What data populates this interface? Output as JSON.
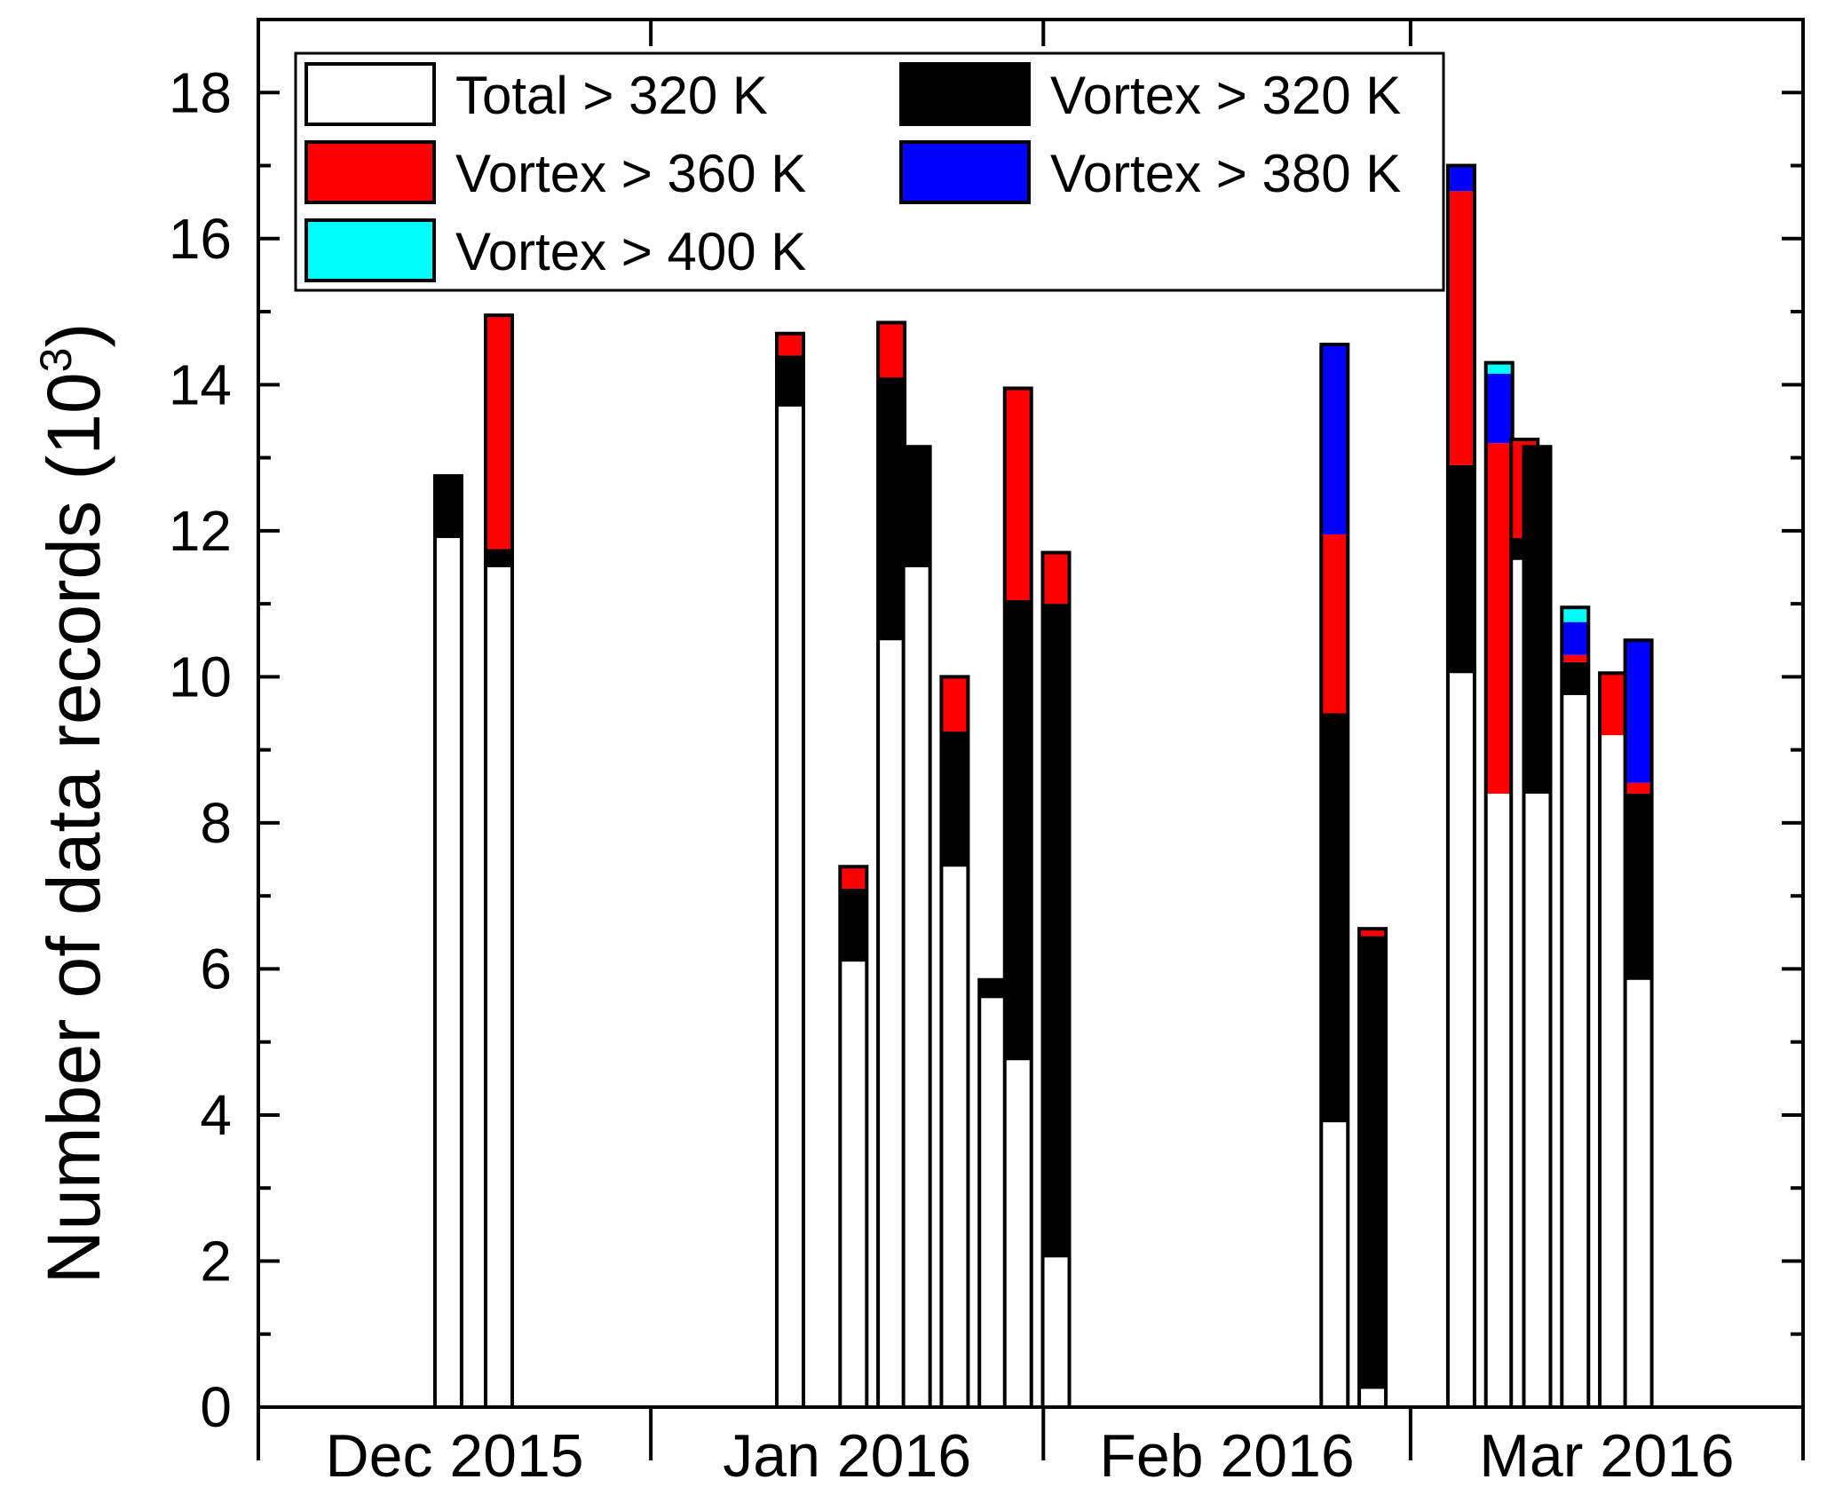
{
  "chart_data": {
    "type": "bar",
    "stacked": true,
    "ylabel": "Number of data records (10",
    "ylabel_sup": "3",
    "ylabel_close": ")",
    "ylim": [
      0,
      19
    ],
    "yticks": [
      "0",
      "2",
      "4",
      "6",
      "8",
      "10",
      "12",
      "14",
      "16",
      "18"
    ],
    "ytick_values": [
      0,
      2,
      4,
      6,
      8,
      10,
      12,
      14,
      16,
      18
    ],
    "months": [
      "Dec 2015",
      "Jan 2016",
      "Feb 2016",
      "Mar 2016"
    ],
    "xlim": [
      "2015-12-01",
      "2016-04-01"
    ],
    "month_boundaries": [
      "2016-01-01",
      "2016-02-01",
      "2016-03-01"
    ],
    "legend": {
      "placement": "top-left",
      "entries": [
        {
          "label": "Total > 320 K",
          "color": "#ffffff"
        },
        {
          "label": "Vortex > 320 K",
          "color": "#000000"
        },
        {
          "label": "Vortex > 360 K",
          "color": "#ff0000"
        },
        {
          "label": "Vortex > 380 K",
          "color": "#0000ff"
        },
        {
          "label": "Vortex > 400 K",
          "color": "#00ffff"
        }
      ]
    },
    "series": [
      {
        "name": "Total > 320 K",
        "color": "#ffffff"
      },
      {
        "name": "Vortex > 320 K",
        "color": "#000000"
      },
      {
        "name": "Vortex > 360 K",
        "color": "#ff0000"
      },
      {
        "name": "Vortex > 380 K",
        "color": "#0000ff"
      },
      {
        "name": "Vortex > 400 K",
        "color": "#00ffff"
      }
    ],
    "bars": [
      {
        "date": "2015-12-16",
        "segments": [
          11.9,
          12.75,
          12.75,
          12.75,
          12.75
        ]
      },
      {
        "date": "2015-12-20",
        "segments": [
          11.5,
          11.75,
          14.95,
          14.95,
          14.95
        ]
      },
      {
        "date": "2016-01-12",
        "segments": [
          13.7,
          14.4,
          14.7,
          14.7,
          14.7
        ]
      },
      {
        "date": "2016-01-17",
        "segments": [
          6.1,
          7.1,
          7.4,
          7.4,
          7.4
        ]
      },
      {
        "date": "2016-01-20",
        "segments": [
          10.5,
          14.1,
          14.85,
          14.85,
          14.85
        ]
      },
      {
        "date": "2016-01-22",
        "segments": [
          11.5,
          13.15,
          13.15,
          13.15,
          13.15
        ]
      },
      {
        "date": "2016-01-25",
        "segments": [
          7.4,
          9.25,
          10.0,
          10.0,
          10.0
        ]
      },
      {
        "date": "2016-01-28",
        "segments": [
          5.6,
          5.85,
          5.85,
          5.85,
          5.85
        ]
      },
      {
        "date": "2016-01-30",
        "segments": [
          4.75,
          11.05,
          13.95,
          13.95,
          13.95
        ]
      },
      {
        "date": "2016-02-02",
        "segments": [
          2.05,
          11.0,
          11.7,
          11.7,
          11.7
        ]
      },
      {
        "date": "2016-02-24",
        "segments": [
          3.9,
          9.5,
          11.95,
          14.55,
          14.55
        ]
      },
      {
        "date": "2016-02-27",
        "segments": [
          0.25,
          6.45,
          6.55,
          6.55,
          6.55
        ]
      },
      {
        "date": "2016-03-05",
        "segments": [
          10.05,
          12.9,
          16.65,
          17.0,
          17.0
        ]
      },
      {
        "date": "2016-03-08",
        "segments": [
          8.4,
          8.4,
          13.2,
          14.15,
          14.3
        ]
      },
      {
        "date": "2016-03-10",
        "segments": [
          11.6,
          11.9,
          13.25,
          13.25,
          13.25
        ]
      },
      {
        "date": "2016-03-11",
        "segments": [
          8.4,
          13.15,
          13.15,
          13.15,
          13.15
        ]
      },
      {
        "date": "2016-03-14",
        "segments": [
          9.75,
          10.2,
          10.3,
          10.75,
          10.95
        ]
      },
      {
        "date": "2016-03-17",
        "segments": [
          9.2,
          9.2,
          10.05,
          10.05,
          10.05
        ]
      },
      {
        "date": "2016-03-19",
        "segments": [
          5.85,
          8.4,
          8.55,
          10.5,
          10.5
        ]
      }
    ]
  }
}
